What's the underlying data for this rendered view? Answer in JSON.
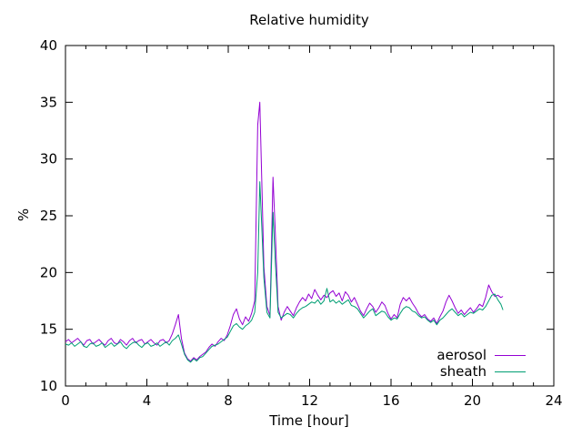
{
  "chart_data": {
    "type": "line",
    "title": "Relative humidity",
    "xlabel": "Time [hour]",
    "ylabel": "%",
    "grid": false,
    "legend_position": "bottom-right-inside",
    "x_axis": {
      "min": 0,
      "max": 24,
      "major_ticks": [
        0,
        4,
        8,
        12,
        16,
        20,
        24
      ],
      "minor_tick_step": 1
    },
    "y_axis": {
      "min": 10,
      "max": 40,
      "major_ticks": [
        10,
        15,
        20,
        25,
        30,
        35,
        40
      ]
    },
    "axis_color": "#000000",
    "series": [
      {
        "name": "aerosol",
        "color": "#9400d3",
        "points": [
          [
            0.0,
            13.9
          ],
          [
            0.15,
            14.1
          ],
          [
            0.3,
            13.8
          ],
          [
            0.45,
            14.0
          ],
          [
            0.6,
            14.2
          ],
          [
            0.75,
            13.9
          ],
          [
            0.9,
            13.6
          ],
          [
            1.05,
            14.0
          ],
          [
            1.2,
            14.1
          ],
          [
            1.35,
            13.7
          ],
          [
            1.5,
            13.9
          ],
          [
            1.65,
            14.1
          ],
          [
            1.8,
            13.8
          ],
          [
            1.95,
            13.6
          ],
          [
            2.1,
            14.0
          ],
          [
            2.25,
            14.2
          ],
          [
            2.4,
            13.8
          ],
          [
            2.55,
            13.7
          ],
          [
            2.7,
            14.1
          ],
          [
            2.85,
            13.9
          ],
          [
            3.0,
            13.6
          ],
          [
            3.15,
            14.0
          ],
          [
            3.3,
            14.2
          ],
          [
            3.45,
            13.8
          ],
          [
            3.6,
            14.0
          ],
          [
            3.75,
            14.1
          ],
          [
            3.9,
            13.7
          ],
          [
            4.05,
            13.9
          ],
          [
            4.2,
            14.1
          ],
          [
            4.35,
            13.8
          ],
          [
            4.5,
            13.6
          ],
          [
            4.65,
            14.0
          ],
          [
            4.8,
            14.1
          ],
          [
            4.95,
            13.8
          ],
          [
            5.1,
            14.0
          ],
          [
            5.25,
            14.6
          ],
          [
            5.4,
            15.4
          ],
          [
            5.55,
            16.3
          ],
          [
            5.7,
            14.2
          ],
          [
            5.85,
            12.9
          ],
          [
            6.0,
            12.4
          ],
          [
            6.15,
            12.2
          ],
          [
            6.3,
            12.5
          ],
          [
            6.45,
            12.3
          ],
          [
            6.6,
            12.6
          ],
          [
            6.75,
            12.8
          ],
          [
            6.9,
            13.0
          ],
          [
            7.05,
            13.4
          ],
          [
            7.2,
            13.7
          ],
          [
            7.35,
            13.5
          ],
          [
            7.5,
            13.9
          ],
          [
            7.65,
            14.2
          ],
          [
            7.8,
            14.0
          ],
          [
            7.95,
            14.5
          ],
          [
            8.1,
            15.3
          ],
          [
            8.25,
            16.3
          ],
          [
            8.4,
            16.8
          ],
          [
            8.55,
            15.9
          ],
          [
            8.7,
            15.4
          ],
          [
            8.85,
            16.1
          ],
          [
            9.0,
            15.7
          ],
          [
            9.15,
            16.4
          ],
          [
            9.3,
            17.5
          ],
          [
            9.45,
            33.0
          ],
          [
            9.55,
            35.0
          ],
          [
            9.65,
            28.0
          ],
          [
            9.75,
            20.5
          ],
          [
            9.9,
            17.0
          ],
          [
            10.05,
            16.2
          ],
          [
            10.2,
            28.4
          ],
          [
            10.3,
            24.0
          ],
          [
            10.45,
            17.0
          ],
          [
            10.6,
            15.8
          ],
          [
            10.75,
            16.5
          ],
          [
            10.9,
            17.0
          ],
          [
            11.05,
            16.6
          ],
          [
            11.2,
            16.2
          ],
          [
            11.35,
            16.9
          ],
          [
            11.5,
            17.4
          ],
          [
            11.65,
            17.8
          ],
          [
            11.8,
            17.5
          ],
          [
            11.95,
            18.1
          ],
          [
            12.1,
            17.7
          ],
          [
            12.25,
            18.5
          ],
          [
            12.4,
            18.0
          ],
          [
            12.55,
            17.6
          ],
          [
            12.7,
            18.0
          ],
          [
            12.85,
            17.8
          ],
          [
            13.0,
            18.2
          ],
          [
            13.15,
            18.4
          ],
          [
            13.3,
            17.9
          ],
          [
            13.45,
            18.2
          ],
          [
            13.6,
            17.5
          ],
          [
            13.75,
            18.3
          ],
          [
            13.9,
            18.0
          ],
          [
            14.05,
            17.4
          ],
          [
            14.2,
            17.8
          ],
          [
            14.35,
            17.2
          ],
          [
            14.5,
            16.6
          ],
          [
            14.65,
            16.2
          ],
          [
            14.8,
            16.8
          ],
          [
            14.95,
            17.3
          ],
          [
            15.1,
            17.0
          ],
          [
            15.25,
            16.5
          ],
          [
            15.4,
            16.9
          ],
          [
            15.55,
            17.4
          ],
          [
            15.7,
            17.1
          ],
          [
            15.85,
            16.4
          ],
          [
            16.0,
            15.9
          ],
          [
            16.15,
            16.3
          ],
          [
            16.3,
            16.0
          ],
          [
            16.45,
            17.2
          ],
          [
            16.6,
            17.8
          ],
          [
            16.75,
            17.5
          ],
          [
            16.9,
            17.8
          ],
          [
            17.05,
            17.3
          ],
          [
            17.2,
            16.9
          ],
          [
            17.35,
            16.4
          ],
          [
            17.5,
            16.1
          ],
          [
            17.65,
            16.3
          ],
          [
            17.8,
            15.9
          ],
          [
            17.95,
            15.7
          ],
          [
            18.1,
            16.0
          ],
          [
            18.25,
            15.5
          ],
          [
            18.4,
            16.1
          ],
          [
            18.55,
            16.6
          ],
          [
            18.7,
            17.4
          ],
          [
            18.85,
            18.0
          ],
          [
            19.0,
            17.5
          ],
          [
            19.15,
            16.9
          ],
          [
            19.3,
            16.4
          ],
          [
            19.45,
            16.7
          ],
          [
            19.6,
            16.3
          ],
          [
            19.75,
            16.6
          ],
          [
            19.9,
            16.9
          ],
          [
            20.05,
            16.5
          ],
          [
            20.2,
            16.8
          ],
          [
            20.35,
            17.2
          ],
          [
            20.5,
            17.0
          ],
          [
            20.65,
            17.8
          ],
          [
            20.8,
            18.9
          ],
          [
            20.95,
            18.3
          ],
          [
            21.1,
            17.9
          ],
          [
            21.25,
            18.0
          ],
          [
            21.4,
            17.8
          ],
          [
            21.5,
            17.9
          ]
        ]
      },
      {
        "name": "sheath",
        "color": "#009e73",
        "points": [
          [
            0.0,
            13.7
          ],
          [
            0.15,
            13.6
          ],
          [
            0.3,
            13.8
          ],
          [
            0.45,
            13.5
          ],
          [
            0.6,
            13.7
          ],
          [
            0.75,
            13.9
          ],
          [
            0.9,
            13.5
          ],
          [
            1.05,
            13.4
          ],
          [
            1.2,
            13.7
          ],
          [
            1.35,
            13.8
          ],
          [
            1.5,
            13.5
          ],
          [
            1.65,
            13.6
          ],
          [
            1.8,
            13.8
          ],
          [
            1.95,
            13.4
          ],
          [
            2.1,
            13.6
          ],
          [
            2.25,
            13.8
          ],
          [
            2.4,
            13.5
          ],
          [
            2.55,
            13.7
          ],
          [
            2.7,
            13.9
          ],
          [
            2.85,
            13.5
          ],
          [
            3.0,
            13.3
          ],
          [
            3.15,
            13.6
          ],
          [
            3.3,
            13.8
          ],
          [
            3.45,
            13.9
          ],
          [
            3.6,
            13.6
          ],
          [
            3.75,
            13.4
          ],
          [
            3.9,
            13.7
          ],
          [
            4.05,
            13.8
          ],
          [
            4.2,
            13.5
          ],
          [
            4.35,
            13.6
          ],
          [
            4.5,
            13.8
          ],
          [
            4.65,
            13.5
          ],
          [
            4.8,
            13.7
          ],
          [
            4.95,
            13.9
          ],
          [
            5.1,
            13.6
          ],
          [
            5.25,
            14.0
          ],
          [
            5.4,
            14.2
          ],
          [
            5.55,
            14.5
          ],
          [
            5.7,
            13.7
          ],
          [
            5.85,
            12.8
          ],
          [
            6.0,
            12.3
          ],
          [
            6.15,
            12.1
          ],
          [
            6.3,
            12.4
          ],
          [
            6.45,
            12.2
          ],
          [
            6.6,
            12.5
          ],
          [
            6.75,
            12.6
          ],
          [
            6.9,
            12.9
          ],
          [
            7.05,
            13.2
          ],
          [
            7.2,
            13.5
          ],
          [
            7.35,
            13.6
          ],
          [
            7.5,
            13.7
          ],
          [
            7.65,
            13.9
          ],
          [
            7.8,
            14.1
          ],
          [
            7.95,
            14.3
          ],
          [
            8.1,
            14.8
          ],
          [
            8.25,
            15.3
          ],
          [
            8.4,
            15.5
          ],
          [
            8.55,
            15.2
          ],
          [
            8.7,
            15.0
          ],
          [
            8.85,
            15.3
          ],
          [
            9.0,
            15.5
          ],
          [
            9.15,
            15.8
          ],
          [
            9.3,
            16.5
          ],
          [
            9.45,
            20.0
          ],
          [
            9.55,
            28.0
          ],
          [
            9.65,
            24.0
          ],
          [
            9.75,
            19.5
          ],
          [
            9.9,
            16.5
          ],
          [
            10.05,
            16.0
          ],
          [
            10.2,
            25.3
          ],
          [
            10.3,
            21.3
          ],
          [
            10.45,
            16.5
          ],
          [
            10.6,
            16.0
          ],
          [
            10.75,
            16.2
          ],
          [
            10.9,
            16.4
          ],
          [
            11.05,
            16.3
          ],
          [
            11.2,
            16.0
          ],
          [
            11.35,
            16.4
          ],
          [
            11.5,
            16.7
          ],
          [
            11.65,
            16.9
          ],
          [
            11.8,
            17.0
          ],
          [
            11.95,
            17.2
          ],
          [
            12.1,
            17.4
          ],
          [
            12.25,
            17.3
          ],
          [
            12.4,
            17.6
          ],
          [
            12.55,
            17.2
          ],
          [
            12.7,
            17.5
          ],
          [
            12.85,
            18.6
          ],
          [
            13.0,
            17.4
          ],
          [
            13.15,
            17.6
          ],
          [
            13.3,
            17.3
          ],
          [
            13.45,
            17.5
          ],
          [
            13.6,
            17.2
          ],
          [
            13.75,
            17.4
          ],
          [
            13.9,
            17.6
          ],
          [
            14.05,
            17.1
          ],
          [
            14.2,
            17.0
          ],
          [
            14.35,
            16.8
          ],
          [
            14.5,
            16.4
          ],
          [
            14.65,
            16.0
          ],
          [
            14.8,
            16.3
          ],
          [
            14.95,
            16.6
          ],
          [
            15.1,
            16.8
          ],
          [
            15.25,
            16.2
          ],
          [
            15.4,
            16.4
          ],
          [
            15.55,
            16.6
          ],
          [
            15.7,
            16.5
          ],
          [
            15.85,
            16.1
          ],
          [
            16.0,
            15.8
          ],
          [
            16.15,
            16.0
          ],
          [
            16.3,
            15.9
          ],
          [
            16.45,
            16.4
          ],
          [
            16.6,
            16.8
          ],
          [
            16.75,
            17.0
          ],
          [
            16.9,
            16.9
          ],
          [
            17.05,
            16.6
          ],
          [
            17.2,
            16.5
          ],
          [
            17.35,
            16.2
          ],
          [
            17.5,
            16.0
          ],
          [
            17.65,
            16.1
          ],
          [
            17.8,
            15.8
          ],
          [
            17.95,
            15.6
          ],
          [
            18.1,
            15.8
          ],
          [
            18.25,
            15.4
          ],
          [
            18.4,
            15.8
          ],
          [
            18.55,
            16.0
          ],
          [
            18.7,
            16.3
          ],
          [
            18.85,
            16.6
          ],
          [
            19.0,
            16.8
          ],
          [
            19.15,
            16.5
          ],
          [
            19.3,
            16.2
          ],
          [
            19.45,
            16.4
          ],
          [
            19.6,
            16.1
          ],
          [
            19.75,
            16.3
          ],
          [
            19.9,
            16.5
          ],
          [
            20.05,
            16.4
          ],
          [
            20.2,
            16.6
          ],
          [
            20.35,
            16.8
          ],
          [
            20.5,
            16.7
          ],
          [
            20.65,
            17.0
          ],
          [
            20.8,
            17.5
          ],
          [
            20.95,
            18.0
          ],
          [
            21.1,
            18.1
          ],
          [
            21.25,
            17.6
          ],
          [
            21.4,
            17.2
          ],
          [
            21.5,
            16.7
          ]
        ]
      }
    ]
  }
}
